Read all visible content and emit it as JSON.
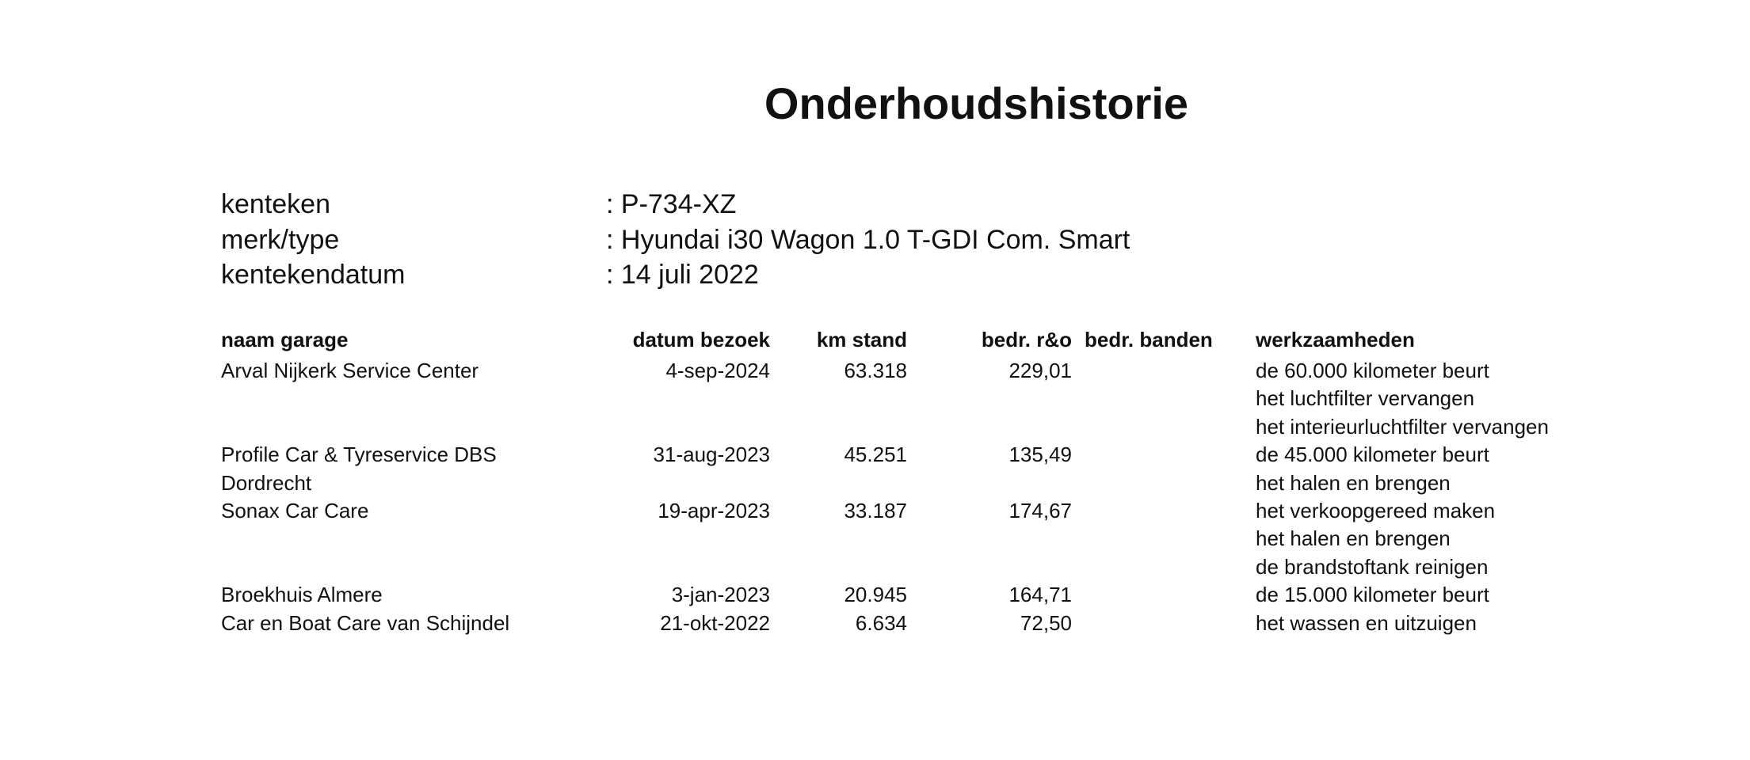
{
  "title": "Onderhoudshistorie",
  "vehicle": [
    {
      "label": "kenteken",
      "value": ": P-734-XZ"
    },
    {
      "label": "merk/type",
      "value": ": Hyundai i30 Wagon 1.0 T-GDI Com. Smart"
    },
    {
      "label": "kentekendatum",
      "value": ": 14 juli 2022"
    }
  ],
  "table": {
    "headers": {
      "garage": "naam garage",
      "date": "datum bezoek",
      "km": "km stand",
      "amount_ro": "bedr. r&o",
      "amount_tires": "bedr. banden",
      "work": "werkzaamheden"
    },
    "rows": [
      {
        "garage": [
          "Arval Nijkerk Service Center"
        ],
        "date": "4-sep-2024",
        "km": "63.318",
        "amount_ro": "229,01",
        "amount_tires": "",
        "work": [
          "de 60.000 kilometer beurt",
          "het luchtfilter vervangen",
          "het interieurluchtfilter vervangen"
        ]
      },
      {
        "garage": [
          "Profile Car & Tyreservice DBS",
          "Dordrecht"
        ],
        "date": "31-aug-2023",
        "km": "45.251",
        "amount_ro": "135,49",
        "amount_tires": "",
        "work": [
          "de 45.000 kilometer beurt",
          "het halen en brengen"
        ]
      },
      {
        "garage": [
          "Sonax Car Care"
        ],
        "date": "19-apr-2023",
        "km": "33.187",
        "amount_ro": "174,67",
        "amount_tires": "",
        "work": [
          "het verkoopgereed maken",
          "het halen en brengen",
          "de brandstoftank reinigen"
        ]
      },
      {
        "garage": [
          "Broekhuis Almere"
        ],
        "date": "3-jan-2023",
        "km": "20.945",
        "amount_ro": "164,71",
        "amount_tires": "",
        "work": [
          "de 15.000 kilometer beurt"
        ]
      },
      {
        "garage": [
          "Car en Boat Care van Schijndel"
        ],
        "date": "21-okt-2022",
        "km": "6.634",
        "amount_ro": "72,50",
        "amount_tires": "",
        "work": [
          "het wassen en uitzuigen"
        ]
      }
    ]
  }
}
